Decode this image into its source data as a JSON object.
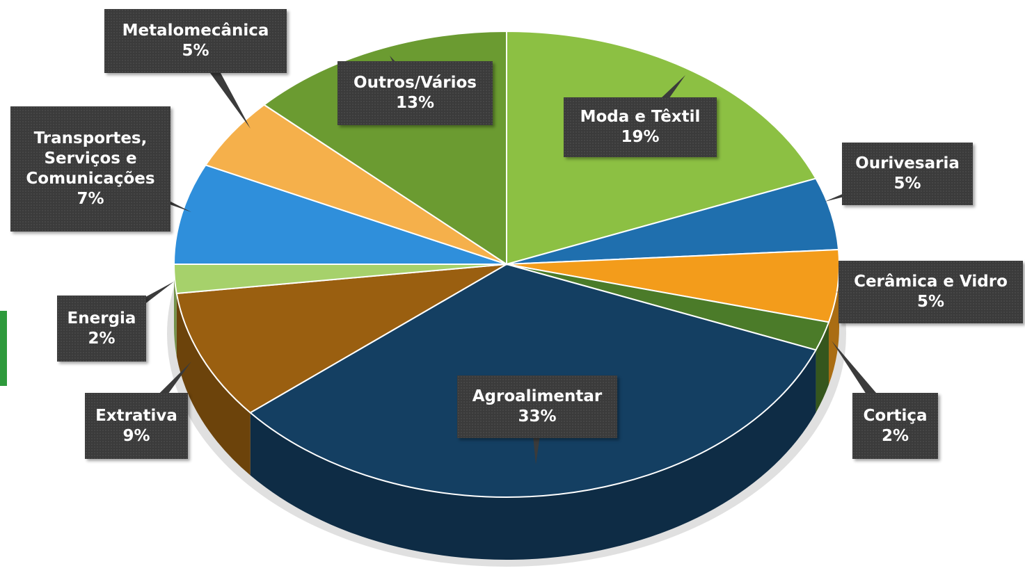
{
  "chart_data": {
    "type": "pie",
    "categories": [
      "Moda e Têxtil",
      "Ourivesaria",
      "Cerâmica e Vidro",
      "Cortiça",
      "Agroalimentar",
      "Extrativa",
      "Energia",
      "Transportes, Serviços e Comunicações",
      "Metalomecânica",
      "Outros/Vários"
    ],
    "values": [
      19,
      5,
      5,
      2,
      33,
      9,
      2,
      7,
      5,
      13
    ],
    "value_labels": [
      "19%",
      "5%",
      "5%",
      "2%",
      "33%",
      "9%",
      "2%",
      "7%",
      "5%",
      "13%"
    ],
    "colors": [
      "#8cc043",
      "#1f6fae",
      "#f39c1b",
      "#4b7b29",
      "#143f62",
      "#9a5f10",
      "#a6d16b",
      "#2f8fdb",
      "#f5b04b",
      "#6b9b31"
    ]
  }
}
